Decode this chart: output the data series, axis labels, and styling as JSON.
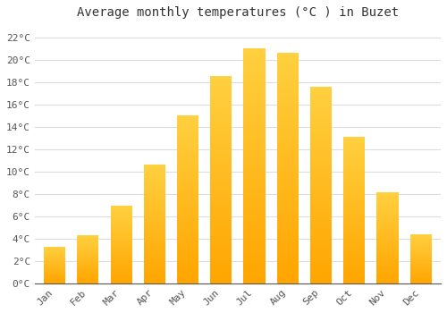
{
  "title": "Average monthly temperatures (°C ) in Buzet",
  "months": [
    "Jan",
    "Feb",
    "Mar",
    "Apr",
    "May",
    "Jun",
    "Jul",
    "Aug",
    "Sep",
    "Oct",
    "Nov",
    "Dec"
  ],
  "temperatures": [
    3.3,
    4.3,
    6.9,
    10.6,
    15.0,
    18.5,
    21.0,
    20.6,
    17.6,
    13.1,
    8.1,
    4.4
  ],
  "bar_color_top": "#FFD040",
  "bar_color_bottom": "#FFA500",
  "background_color": "#FFFFFF",
  "grid_color": "#DDDDDD",
  "yticks": [
    0,
    2,
    4,
    6,
    8,
    10,
    12,
    14,
    16,
    18,
    20,
    22
  ],
  "ylim": [
    0,
    23
  ],
  "title_fontsize": 10,
  "tick_fontsize": 8,
  "font_family": "monospace"
}
